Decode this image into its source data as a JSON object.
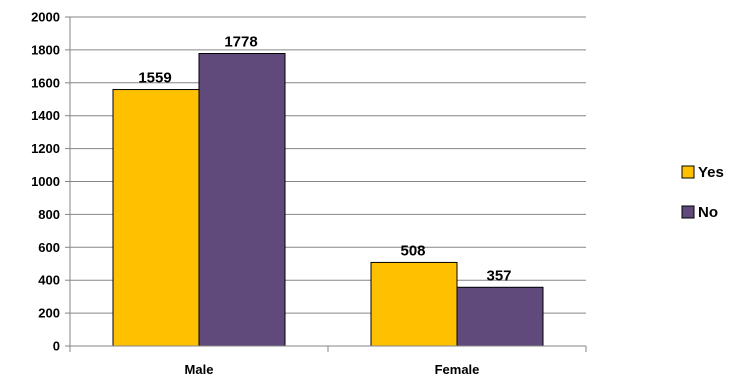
{
  "chart_data": {
    "type": "bar",
    "categories": [
      "Male",
      "Female"
    ],
    "series": [
      {
        "name": "Yes",
        "values": [
          1559,
          508
        ],
        "color": "#FFC000"
      },
      {
        "name": "No",
        "values": [
          1778,
          357
        ],
        "color": "#604A7B"
      }
    ],
    "ylim": [
      0,
      2000
    ],
    "yticks": [
      0,
      200,
      400,
      600,
      800,
      1000,
      1200,
      1400,
      1600,
      1800,
      2000
    ],
    "grid": true,
    "legend_position": "right",
    "data_labels": true
  }
}
